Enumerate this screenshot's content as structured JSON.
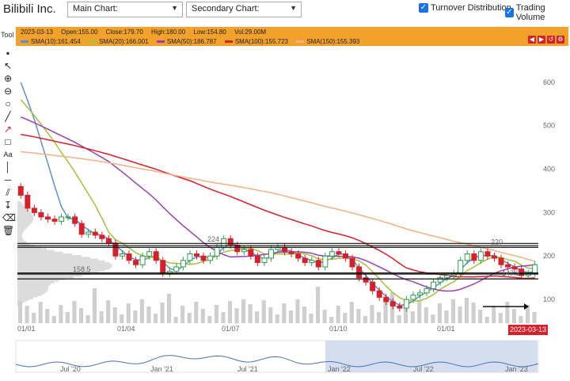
{
  "app": {
    "title": "Bilibili Inc."
  },
  "toolbar": {
    "main_chart_label": "Main Chart:",
    "secondary_chart_label": "Secondary Chart:",
    "turnover_label": "Turnover Distribution",
    "volume_label": "Trading Volume",
    "tool_label": "Tool"
  },
  "info": {
    "date": "2023-03-13",
    "open": "Open:155.00",
    "close": "Close:179.70",
    "high": "High:180.00",
    "low": "Low:154.80",
    "vol": "Vol:29.00M",
    "sma10": "SMA(10):161.454",
    "sma20": "SMA(20):166.001",
    "sma50": "SMA(50):186.787",
    "sma100": "SMA(100):155.723",
    "sma150": "SMA(150):155.393"
  },
  "colors": {
    "sma10": "#5b8fd6",
    "sma20": "#a6c23a",
    "sma50": "#9b3fb5",
    "sma100": "#d6202a",
    "sma150": "#f4b183",
    "up": "#2e9e4a",
    "down": "#d6202a",
    "volume": "#cfcfcf",
    "nav": "#c9d6ea"
  },
  "chart_data": {
    "type": "candlestick",
    "y_ticks": [
      "600",
      "500",
      "400",
      "300",
      "200",
      "100"
    ],
    "yrange": [
      60,
      680
    ],
    "x_ticks": [
      "01/01",
      "01/04",
      "01/07",
      "01/10",
      "01/01"
    ],
    "annotations": [
      "224",
      "220",
      "158.5",
      "147.3"
    ],
    "levels": [
      224,
      220,
      158.5,
      147.3
    ],
    "last_date": "2023-03-13",
    "closes": [
      340,
      310,
      300,
      290,
      285,
      280,
      290,
      290,
      275,
      250,
      255,
      248,
      240,
      230,
      200,
      205,
      190,
      180,
      200,
      210,
      190,
      160,
      165,
      175,
      190,
      205,
      200,
      190,
      200,
      220,
      240,
      225,
      210,
      215,
      200,
      185,
      195,
      215,
      220,
      210,
      205,
      195,
      185,
      190,
      175,
      200,
      210,
      205,
      195,
      175,
      150,
      140,
      120,
      105,
      95,
      85,
      80,
      100,
      110,
      115,
      125,
      140,
      150,
      155,
      160,
      190,
      205,
      190,
      210,
      200,
      195,
      180,
      175,
      170,
      155,
      160,
      180
    ]
  },
  "navigator": {
    "x_ticks": [
      "Jul '20",
      "Jan '21",
      "Jul '21",
      "Jan '22",
      "Jul '22",
      "Jan '23"
    ]
  }
}
